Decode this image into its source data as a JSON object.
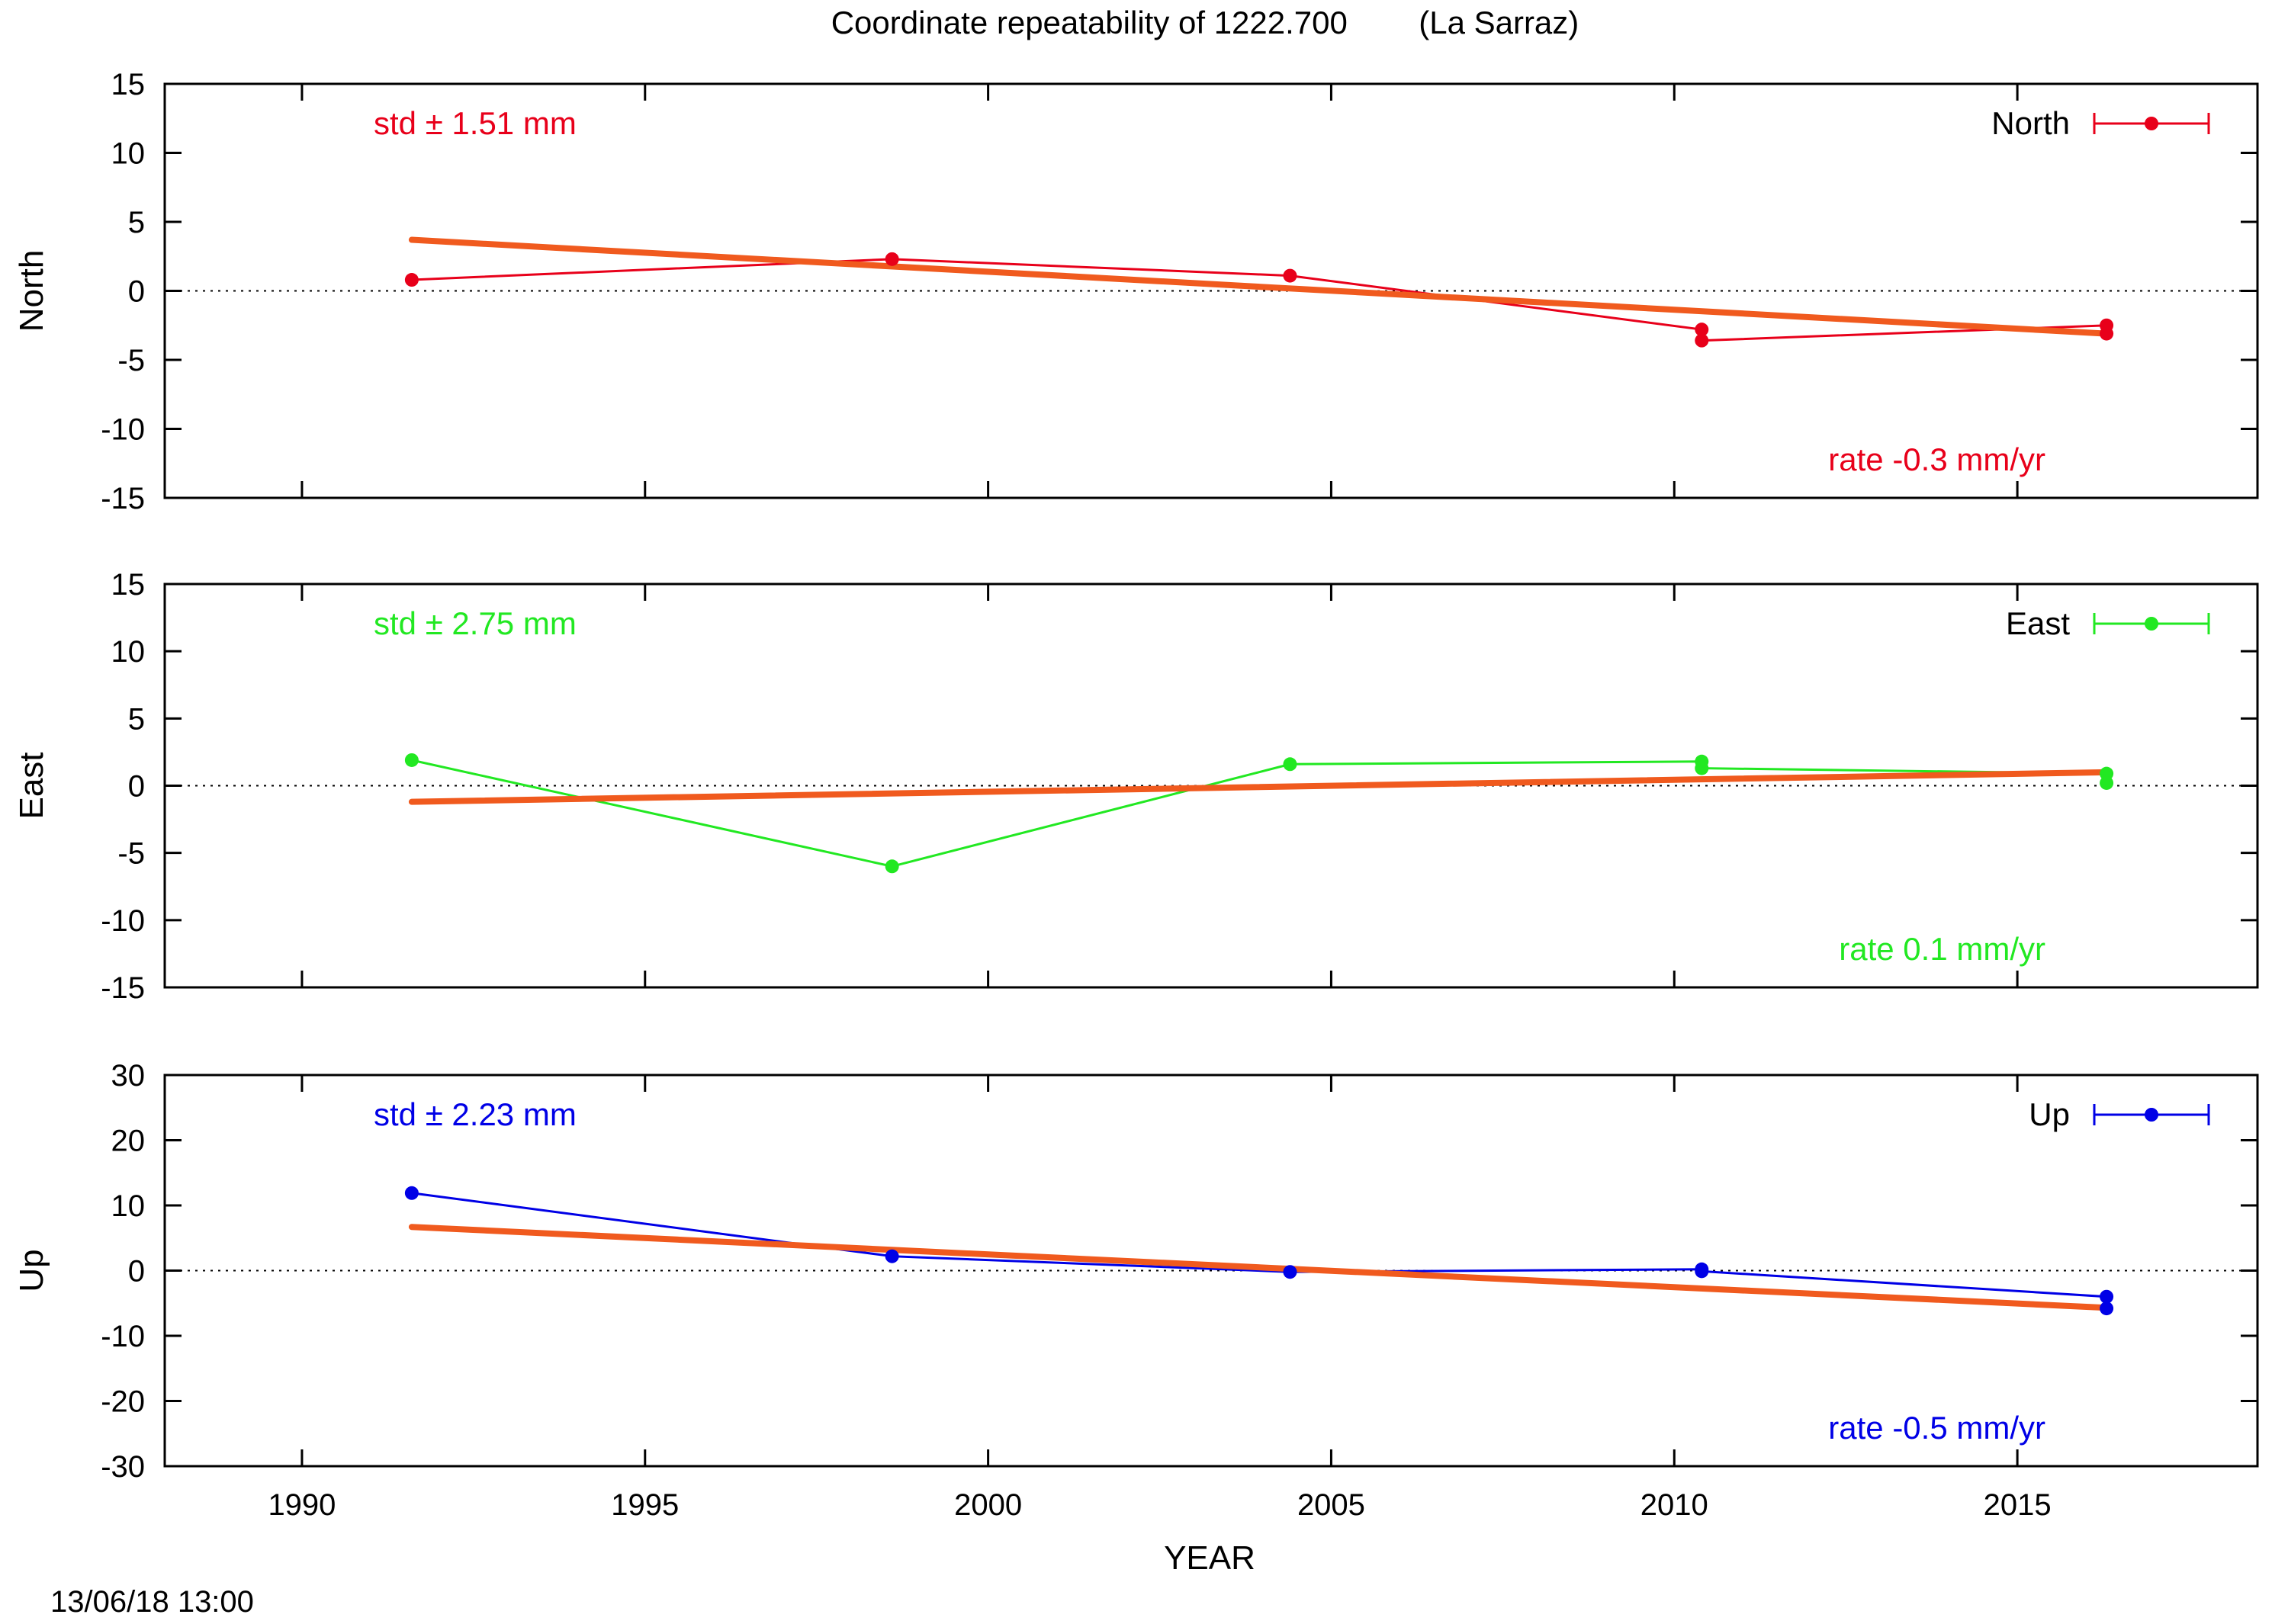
{
  "title": "Coordinate repeatability of 1222.700        (La Sarraz)",
  "xlabel": "YEAR",
  "timestamp": "13/06/18 13:00",
  "colors": {
    "north": "#e8001a",
    "east": "#22e822",
    "up": "#0000e6",
    "trend": "#f05a1e",
    "frame": "#000000"
  },
  "chart_data": [
    {
      "type": "line",
      "ylabel": "North",
      "xlim": [
        1988,
        2018.5
      ],
      "ylim": [
        -15,
        15
      ],
      "xticks": [
        1990,
        1995,
        2000,
        2005,
        2010,
        2015
      ],
      "yticks": [
        -15,
        -10,
        -5,
        0,
        5,
        10,
        15
      ],
      "legend": "North",
      "legend_position": "top-right",
      "std_text": "std ± 1.51 mm",
      "rate_text": "rate -0.3 mm/yr",
      "series": [
        {
          "x": [
            1991.6,
            1998.6,
            2004.4,
            2010.4,
            2010.4,
            2016.3,
            2016.3
          ],
          "y": [
            0.8,
            2.3,
            1.1,
            -2.8,
            -3.6,
            -2.5,
            -3.1
          ]
        }
      ],
      "trend": {
        "x": [
          1991.6,
          2016.3
        ],
        "y": [
          3.7,
          -3.1
        ]
      }
    },
    {
      "type": "line",
      "ylabel": "East",
      "xlim": [
        1988,
        2018.5
      ],
      "ylim": [
        -15,
        15
      ],
      "xticks": [
        1990,
        1995,
        2000,
        2005,
        2010,
        2015
      ],
      "yticks": [
        -15,
        -10,
        -5,
        0,
        5,
        10,
        15
      ],
      "legend": "East",
      "legend_position": "top-right",
      "std_text": "std ± 2.75 mm",
      "rate_text": "rate  0.1 mm/yr",
      "series": [
        {
          "x": [
            1991.6,
            1998.6,
            2004.4,
            2010.4,
            2010.4,
            2016.3,
            2016.3
          ],
          "y": [
            1.9,
            -6.0,
            1.6,
            1.8,
            1.3,
            0.9,
            0.2
          ]
        }
      ],
      "trend": {
        "x": [
          1991.6,
          2016.3
        ],
        "y": [
          -1.2,
          1.0
        ]
      }
    },
    {
      "type": "line",
      "ylabel": "Up",
      "xlim": [
        1988,
        2018.5
      ],
      "ylim": [
        -30,
        30
      ],
      "xticks": [
        1990,
        1995,
        2000,
        2005,
        2010,
        2015
      ],
      "yticks": [
        -30,
        -20,
        -10,
        0,
        10,
        20,
        30
      ],
      "legend": "Up",
      "legend_position": "top-right",
      "std_text": "std ± 2.23 mm",
      "rate_text": "rate -0.5 mm/yr",
      "series": [
        {
          "x": [
            1991.6,
            1998.6,
            2004.4,
            2010.4,
            2010.4,
            2016.3,
            2016.3
          ],
          "y": [
            11.9,
            2.2,
            -0.2,
            0.2,
            -0.1,
            -4.0,
            -5.8
          ]
        }
      ],
      "trend": {
        "x": [
          1991.6,
          2016.3
        ],
        "y": [
          6.7,
          -5.7
        ]
      }
    }
  ]
}
